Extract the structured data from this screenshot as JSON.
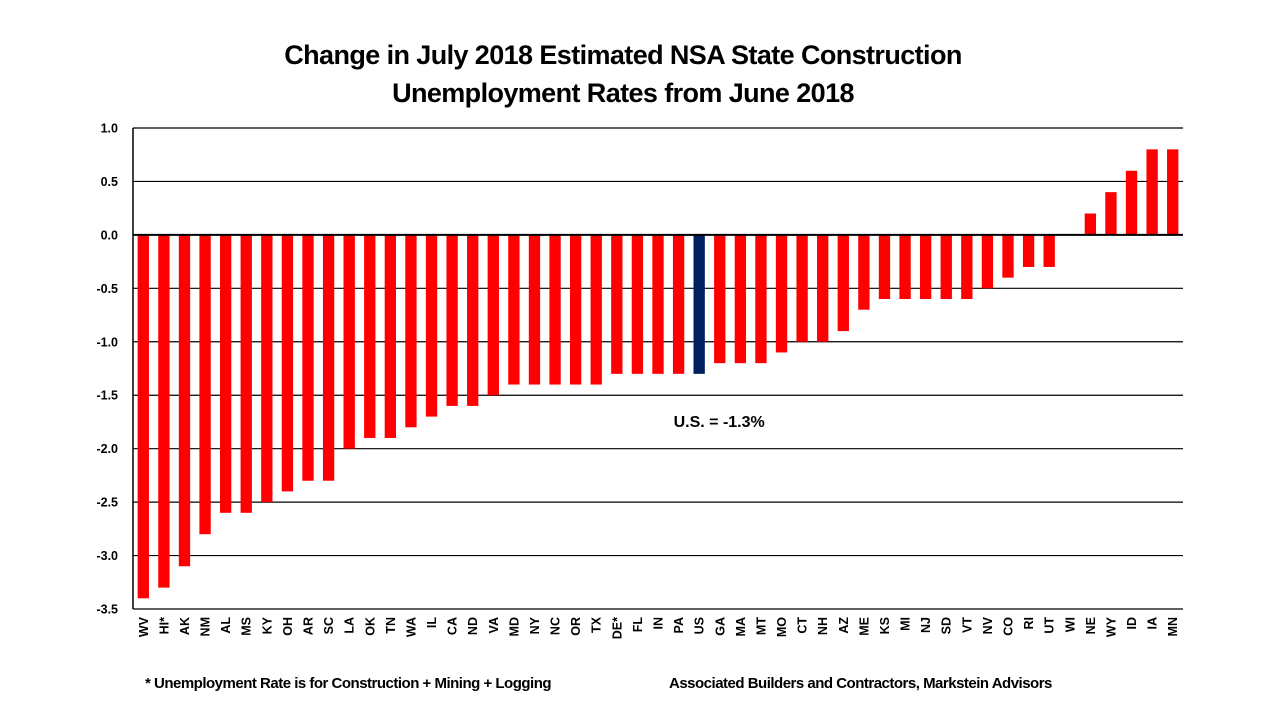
{
  "chart_data": {
    "type": "bar",
    "title": [
      "Change in July 2018 Estimated NSA State Construction",
      "Unemployment Rates from June 2018"
    ],
    "xlabel": "",
    "ylabel": "",
    "ylim": [
      -3.5,
      1.0
    ],
    "yticks": [
      1.0,
      0.5,
      0.0,
      -0.5,
      -1.0,
      -1.5,
      -2.0,
      -2.5,
      -3.0,
      -3.5
    ],
    "ytick_labels": [
      "1.0",
      "0.5",
      "0.0",
      "-0.5",
      "-1.0",
      "-1.5",
      "-2.0",
      "-2.5",
      "-3.0",
      "-3.5"
    ],
    "grid": true,
    "categories": [
      "WV",
      "HI*",
      "AK",
      "NM",
      "AL",
      "MS",
      "KY",
      "OH",
      "AR",
      "SC",
      "LA",
      "OK",
      "TN",
      "WA",
      "IL",
      "CA",
      "ND",
      "VA",
      "MD",
      "NY",
      "NC",
      "OR",
      "TX",
      "DE*",
      "FL",
      "IN",
      "PA",
      "US",
      "GA",
      "MA",
      "MT",
      "MO",
      "CT",
      "NH",
      "AZ",
      "ME",
      "KS",
      "MI",
      "NJ",
      "SD",
      "VT",
      "NV",
      "CO",
      "RI",
      "UT",
      "WI",
      "NE",
      "WY",
      "ID",
      "IA",
      "MN"
    ],
    "values": [
      -3.4,
      -3.3,
      -3.1,
      -2.8,
      -2.6,
      -2.6,
      -2.5,
      -2.4,
      -2.3,
      -2.3,
      -2.0,
      -1.9,
      -1.9,
      -1.8,
      -1.7,
      -1.6,
      -1.6,
      -1.5,
      -1.4,
      -1.4,
      -1.4,
      -1.4,
      -1.4,
      -1.3,
      -1.3,
      -1.3,
      -1.3,
      -1.3,
      -1.2,
      -1.2,
      -1.2,
      -1.1,
      -1.0,
      -1.0,
      -0.9,
      -0.7,
      -0.6,
      -0.6,
      -0.6,
      -0.6,
      -0.6,
      -0.5,
      -0.4,
      -0.3,
      -0.3,
      0.0,
      0.2,
      0.4,
      0.6,
      0.8,
      0.8
    ],
    "highlight_category": "US",
    "colors": {
      "default": "#ff0000",
      "highlight": "#002060",
      "axis": "#000000",
      "grid": "#000000"
    },
    "annotations": [
      {
        "text": "U.S. = -1.3%",
        "x_category": "US",
        "y": -1.75
      }
    ],
    "legend": "none"
  },
  "footer": {
    "note": "* Unemployment Rate is for Construction + Mining + Logging",
    "source": "Associated Builders and Contractors, Markstein Advisors"
  }
}
